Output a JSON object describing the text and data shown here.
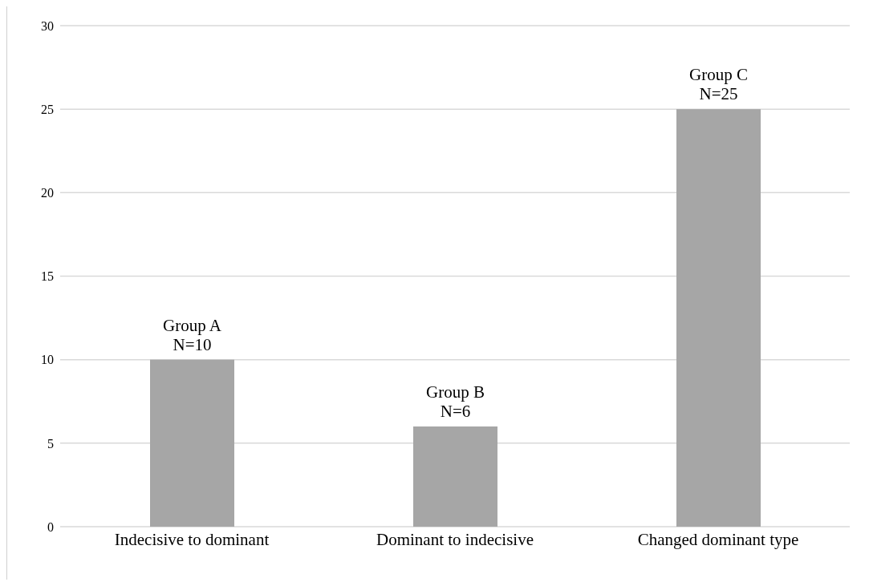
{
  "chart_data": {
    "type": "bar",
    "categories": [
      "Indecisive to dominant",
      "Dominant to indecisive",
      "Changed dominant type"
    ],
    "values": [
      10,
      6,
      25
    ],
    "value_labels": [
      "Group A\nN=10",
      "Group B\nN=6",
      "Group C\nN=25"
    ],
    "color": "#a6a6a6",
    "ylim": [
      0,
      30
    ],
    "yticks": [
      0,
      5,
      10,
      15,
      20,
      25,
      30
    ],
    "grid": "y",
    "legend": false
  }
}
